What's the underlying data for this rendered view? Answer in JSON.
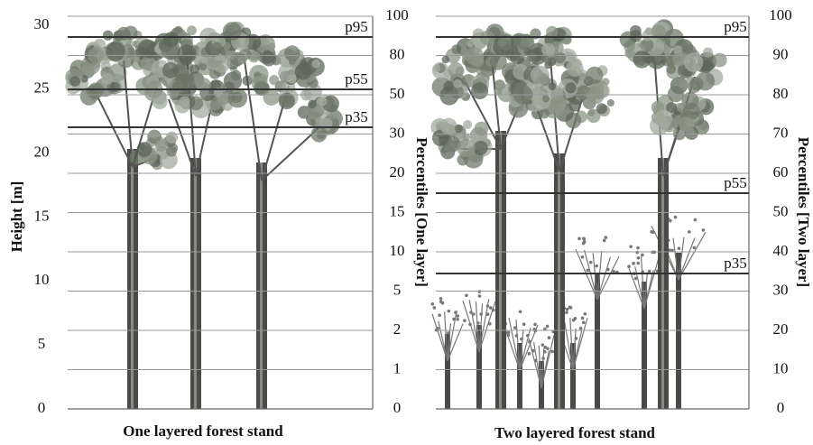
{
  "left_panel": {
    "y_axis_title": "Height [m]",
    "y_ticks": [
      0,
      5,
      10,
      15,
      20,
      25,
      30
    ],
    "right_axis_title": "Percentiles [One layer]",
    "right_ticks": [
      0,
      1,
      2,
      5,
      10,
      15,
      20,
      30,
      50,
      80,
      100
    ],
    "percentile_labels": [
      "p95",
      "p55",
      "p35"
    ],
    "caption": "One layered forest stand"
  },
  "right_panel": {
    "right_axis_title": "Percentiles [Two layer]",
    "right_ticks": [
      0,
      10,
      20,
      30,
      40,
      50,
      60,
      70,
      80,
      90,
      100
    ],
    "percentile_labels": [
      "p95",
      "p55",
      "p35"
    ],
    "caption": "Two layered forest stand"
  }
}
